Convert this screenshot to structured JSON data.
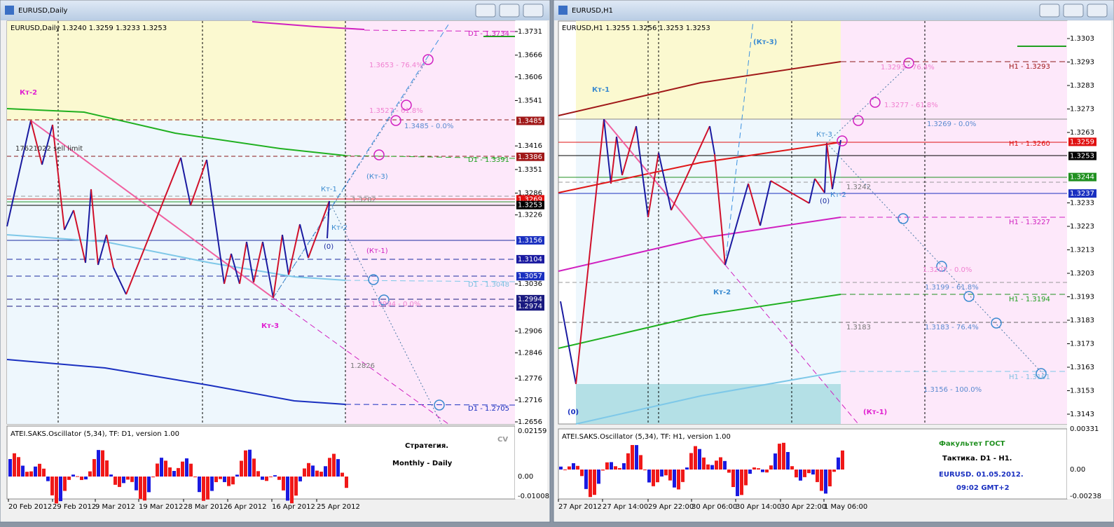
{
  "windows": [
    {
      "title": "EURUSD,Daily",
      "header": "EURUSD,Daily  1.3240 1.3259 1.3233 1.3253",
      "price_axis": [
        "1.3731",
        "1.3666",
        "1.3606",
        "1.3541",
        "1.3485",
        "1.3416",
        "1.3386",
        "1.3351",
        "1.3286",
        "1.3269",
        "1.3253",
        "1.3226",
        "1.3156",
        "1.3104",
        "1.3057",
        "1.3036",
        "1.2994",
        "1.2974",
        "1.2906",
        "1.2846",
        "1.2776",
        "1.2716",
        "1.2656"
      ],
      "osc_axis": [
        "0.02159",
        "0.00",
        "-0.01008"
      ],
      "time_axis": [
        "20 Feb 2012",
        "29 Feb 2012",
        "9 Mar 2012",
        "19 Mar 2012",
        "28 Mar 2012",
        "6 Apr 2012",
        "16 Apr 2012",
        "25 Apr 2012"
      ],
      "annotations": [
        "Кт-2",
        "17621022 sell limit",
        "D1 - 1.3734",
        "1.3653 - 76.4%",
        "1.3527 - 61.8%",
        "1.3485 - 0.0%",
        "D1 - 1.3391",
        "(Кт-3)",
        "Кт-1",
        "1.3282",
        "Кт-2",
        "(0)",
        "(Кт-1)",
        "D1 - 1.3048",
        "1.2994 - 0.0%",
        "Кт-3",
        "1.2826",
        "D1 - 1.2705"
      ],
      "osc_header": "ATEI.SAKS.Oscillator (5,34), TF: D1, version 1.00",
      "caption": [
        "CV",
        "Стратегия.",
        "Monthly - Daily"
      ]
    },
    {
      "title": "EURUSD,H1",
      "header": "EURUSD,H1  1.3255 1.3256 1.3253 1.3253",
      "price_axis": [
        "1.3303",
        "1.3293",
        "1.3283",
        "1.3273",
        "1.3263",
        "1.3259",
        "1.3253",
        "1.3244",
        "1.3237",
        "1.3233",
        "1.3223",
        "1.3213",
        "1.3203",
        "1.3193",
        "1.3183",
        "1.3173",
        "1.3163",
        "1.3153",
        "1.3143"
      ],
      "osc_axis": [
        "0.00331",
        "0.00",
        "-0.00238"
      ],
      "time_axis": [
        "27 Apr 2012",
        "27 Apr 14:00",
        "29 Apr 22:00",
        "30 Apr 06:00",
        "30 Apr 14:00",
        "30 Apr 22:00",
        "1 May 06:00"
      ],
      "annotations": [
        "(Кт-3)",
        "Кт-1",
        "H1 - 1.3293",
        "1.3293 - 76.4%",
        "1.3277 - 61.8%",
        "1.3269 - 0.0%",
        "Кт-3",
        "H1 - 1.3260",
        "1.3242",
        "Кт-2",
        "(0)",
        "H1 - 1.3227",
        "1.3207 - 0.0%",
        "Кт-2",
        "1.3199 - 61.8%",
        "H1 - 1.3194",
        "1.3183",
        "1.3183 - 76.4%",
        "H1 - 1.3161",
        "1.3156 - 100.0%",
        "(0)",
        "(Кт-1)"
      ],
      "osc_header": "ATEI.SAKS.Oscillator (5,34), TF: H1, version 1.00",
      "caption": [
        "Факультет ГОСТ",
        "Тактика. D1 - H1.",
        "EURUSD. 01.05.2012.",
        "09:02  GMT+2"
      ]
    }
  ]
}
